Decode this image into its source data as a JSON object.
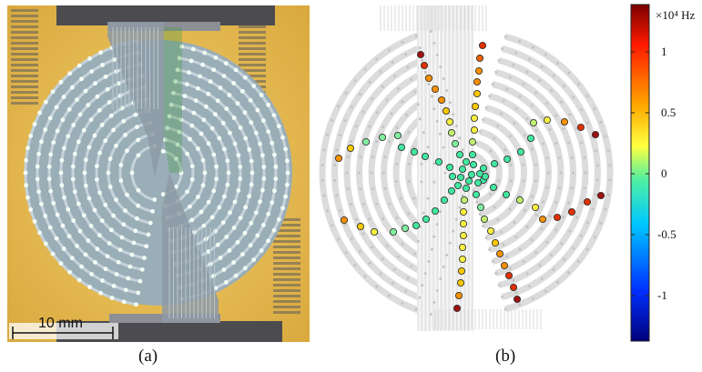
{
  "panel_a": {
    "caption": "(a)",
    "scale_bar_label": "10 mm"
  },
  "panel_b": {
    "caption": "(b)"
  },
  "colorbar": {
    "unit": "×10⁴ Hz",
    "ticks": [
      "1",
      "0.5",
      "0",
      "-0.5",
      "-1"
    ],
    "colors": [
      "#7a0000",
      "#ff2a00",
      "#ffb000",
      "#ffff40",
      "#3fe6a0",
      "#00b8ff",
      "#0030ff",
      "#00007a"
    ]
  }
}
